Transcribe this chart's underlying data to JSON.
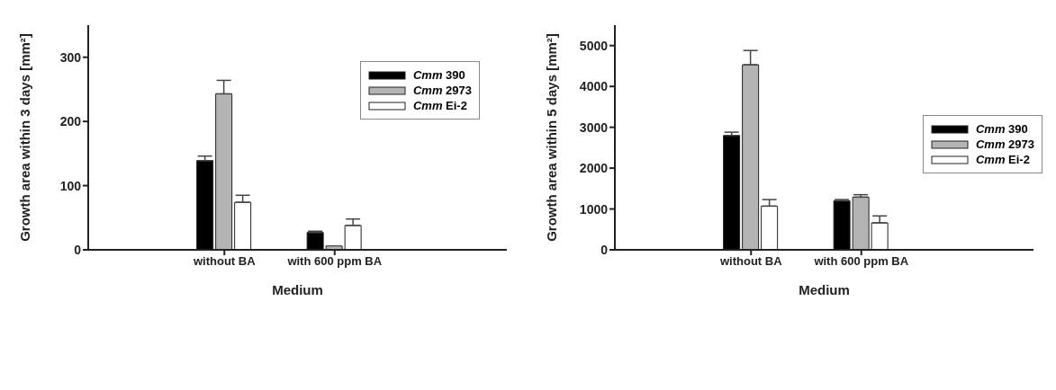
{
  "chart_data": [
    {
      "type": "bar",
      "ylabel": "Growth area within 3 days [mm²]",
      "xlabel": "Medium",
      "categories": [
        "without BA",
        "with 600 ppm BA"
      ],
      "ylim": [
        0,
        350
      ],
      "yticks": [
        0,
        100,
        200,
        300
      ],
      "legend": "top right",
      "series": [
        {
          "name": "Cmm 390",
          "color": "#000000",
          "values": [
            139,
            27
          ],
          "errors": [
            [
              139,
              146
            ],
            [
              27,
              29
            ]
          ]
        },
        {
          "name": "Cmm 2973",
          "color": "#b4b4b4",
          "values": [
            243,
            6
          ],
          "errors": [
            [
              243,
              264
            ],
            null
          ]
        },
        {
          "name": "Cmm Ei-2",
          "color": "#ffffff",
          "values": [
            74,
            38
          ],
          "errors": [
            [
              74,
              85
            ],
            [
              38,
              48
            ]
          ]
        }
      ]
    },
    {
      "type": "bar",
      "ylabel": "Growth area within 5 days [mm²]",
      "xlabel": "Medium",
      "categories": [
        "without BA",
        "with 600 ppm BA"
      ],
      "ylim": [
        0,
        5500
      ],
      "yticks": [
        0,
        1000,
        2000,
        3000,
        4000,
        5000
      ],
      "legend": "right",
      "series": [
        {
          "name": "Cmm 390",
          "color": "#000000",
          "values": [
            2800,
            1200
          ],
          "errors": [
            [
              2800,
              2880
            ],
            [
              1200,
              1230
            ]
          ]
        },
        {
          "name": "Cmm 2973",
          "color": "#b4b4b4",
          "values": [
            4530,
            1290
          ],
          "errors": [
            [
              4530,
              4880
            ],
            [
              1290,
              1350
            ]
          ]
        },
        {
          "name": "Cmm Ei-2",
          "color": "#ffffff",
          "values": [
            1070,
            660
          ],
          "errors": [
            [
              1070,
              1230
            ],
            [
              660,
              830
            ]
          ]
        }
      ]
    }
  ]
}
